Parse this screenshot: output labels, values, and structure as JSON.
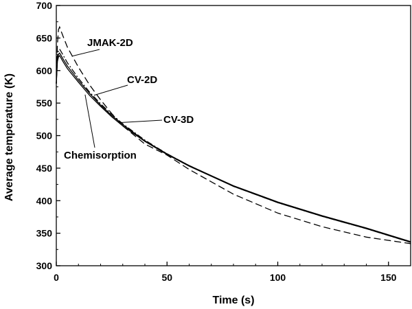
{
  "chart_data": {
    "type": "line",
    "title": "",
    "xlabel": "Time (s)",
    "ylabel": "Average temperature (K)",
    "xlim": [
      0,
      160
    ],
    "ylim": [
      300,
      700
    ],
    "xticks": [
      0,
      50,
      100,
      150
    ],
    "yticks": [
      300,
      350,
      400,
      450,
      500,
      550,
      600,
      650,
      700
    ],
    "grid": false,
    "legend": "none",
    "series": [
      {
        "name": "JMAK-2D",
        "style": "dashed",
        "x": [
          0,
          0.5,
          1,
          1.5,
          2,
          3,
          5,
          10,
          15,
          20,
          25,
          30,
          40,
          50,
          60,
          80,
          100,
          120,
          140,
          160
        ],
        "y": [
          580,
          640,
          663,
          667,
          662,
          653,
          636,
          605,
          578,
          555,
          534,
          515,
          487,
          470,
          448,
          410,
          381,
          360,
          344,
          334
        ]
      },
      {
        "name": "CV-2D",
        "style": "dash-dot",
        "x": [
          0,
          0.5,
          1,
          1.5,
          2,
          3,
          5,
          10,
          15,
          20,
          25,
          30,
          40,
          50,
          60,
          80,
          100,
          120,
          140,
          160
        ],
        "y": [
          580,
          622,
          631,
          633,
          630,
          624,
          612,
          588,
          567,
          549,
          533,
          518,
          493,
          472,
          454,
          422,
          397,
          376,
          357,
          336
        ]
      },
      {
        "name": "CV-3D",
        "style": "solid",
        "x": [
          0,
          0.5,
          1,
          1.5,
          2,
          3,
          5,
          10,
          15,
          20,
          25,
          30,
          40,
          50,
          60,
          80,
          100,
          120,
          140,
          160
        ],
        "y": [
          580,
          617,
          625,
          627,
          624,
          618,
          607,
          585,
          565,
          547,
          531,
          517,
          492,
          472,
          454,
          423,
          398,
          377,
          358,
          337
        ]
      },
      {
        "name": "Chemisorption",
        "style": "solid",
        "x": [
          0,
          0.5,
          1,
          1.5,
          2,
          3,
          5,
          10,
          15,
          20,
          25,
          30,
          40,
          50,
          60,
          80,
          100,
          120,
          140,
          160
        ],
        "y": [
          580,
          614,
          621,
          623,
          620,
          614,
          603,
          582,
          562,
          545,
          529,
          515,
          491,
          471,
          453,
          422,
          397,
          376,
          357,
          336
        ]
      }
    ],
    "annotations": [
      {
        "text": "JMAK-2D",
        "series": "JMAK-2D",
        "point": [
          7,
          622
        ]
      },
      {
        "text": "CV-2D",
        "series": "CV-2D",
        "point": [
          17,
          562
        ]
      },
      {
        "text": "CV-3D",
        "series": "CV-3D",
        "point": [
          29,
          520
        ]
      },
      {
        "text": "Chemisorption",
        "series": "Chemisorption",
        "point": [
          13,
          563
        ]
      }
    ]
  }
}
